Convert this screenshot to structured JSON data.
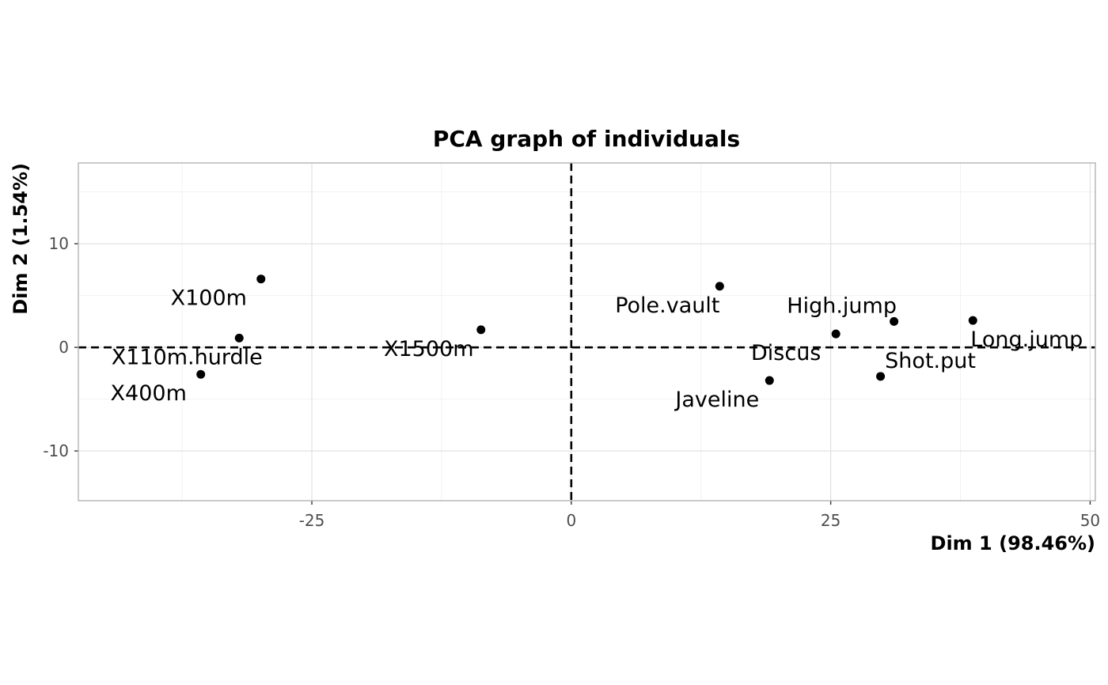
{
  "chart_data": {
    "type": "scatter",
    "title": "PCA graph of individuals",
    "xlabel": "Dim 1 (98.46%)",
    "ylabel": "Dim 2 (1.54%)",
    "xlim": [
      -47.5,
      50.5
    ],
    "ylim": [
      -14.8,
      17.8
    ],
    "xticks": [
      -25,
      0,
      25,
      50
    ],
    "yticks": [
      -10,
      0,
      10
    ],
    "xtick_labels": [
      "-25",
      "0",
      "25",
      "50"
    ],
    "ytick_labels": [
      "-10",
      "0",
      "10"
    ],
    "grid": true,
    "reference_lines": {
      "x": 0,
      "y": 0,
      "style": "dashed"
    },
    "points": [
      {
        "label": "X100m",
        "x": -29.9,
        "y": 6.6
      },
      {
        "label": "X110m.hurdle",
        "x": -32.0,
        "y": 0.9
      },
      {
        "label": "X400m",
        "x": -35.7,
        "y": -2.6
      },
      {
        "label": "X1500m",
        "x": -8.7,
        "y": 1.7
      },
      {
        "label": "Pole.vault",
        "x": 14.3,
        "y": 5.9
      },
      {
        "label": "High.jump",
        "x": 31.1,
        "y": 2.5
      },
      {
        "label": "Discus",
        "x": 25.5,
        "y": 1.3
      },
      {
        "label": "Long.jump",
        "x": 38.7,
        "y": 2.6
      },
      {
        "label": "Shot.put",
        "x": 29.8,
        "y": -2.8
      },
      {
        "label": "Javeline",
        "x": 19.1,
        "y": -3.2
      }
    ]
  }
}
